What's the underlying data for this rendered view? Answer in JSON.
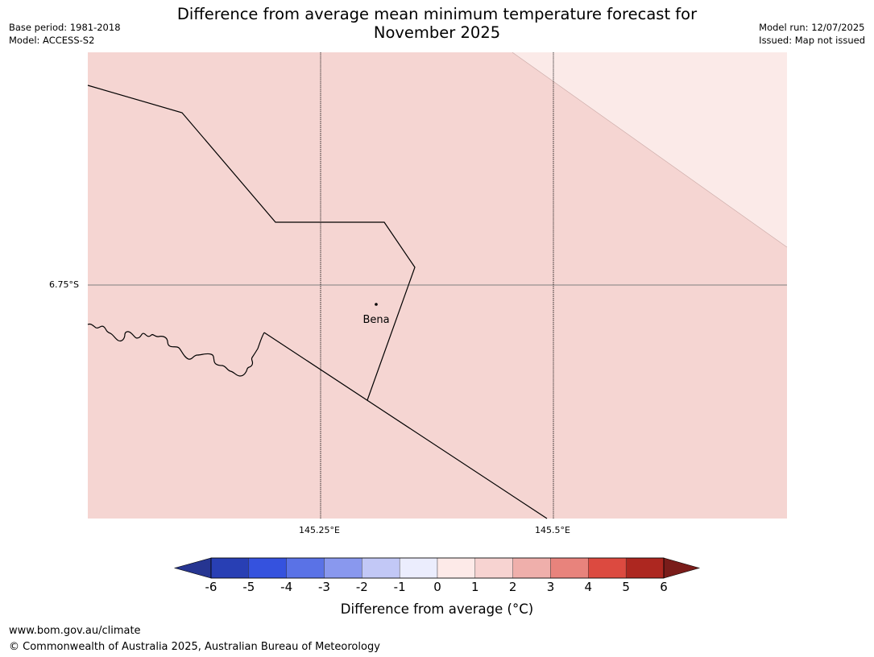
{
  "title": {
    "line1": "Difference from average mean minimum temperature forecast for",
    "line2": "November 2025"
  },
  "meta_left": {
    "base_period": "Base period: 1981-2018",
    "model": "Model: ACCESS-S2"
  },
  "meta_right": {
    "model_run": "Model run: 12/07/2025",
    "issued": "Issued: Map not issued"
  },
  "map": {
    "place": "Bena",
    "lat_labels": [
      "6.75°S"
    ],
    "lon_labels": [
      "145.25°E",
      "145.5°E"
    ],
    "fill_colors": {
      "main": "#f5d5d2",
      "corner": "#fbeae8",
      "border_line": "#000000",
      "grid_horizontal": "#808080",
      "grid_vertical": "#000000"
    }
  },
  "colorbar": {
    "ticks": [
      "-6",
      "-5",
      "-4",
      "-3",
      "-2",
      "-1",
      "0",
      "1",
      "2",
      "3",
      "4",
      "5",
      "6"
    ],
    "colors": [
      "#263591",
      "#283fb4",
      "#3552de",
      "#5a72e6",
      "#8998ee",
      "#c2c8f6",
      "#ebedfd",
      "#fdeae8",
      "#f7d3d1",
      "#efafab",
      "#e8837c",
      "#dc4a40",
      "#ad2720",
      "#7a1c1a"
    ],
    "label": "Difference from average (°C)"
  },
  "footer": {
    "url": "www.bom.gov.au/climate",
    "copyright": "© Commonwealth of Australia 2025, Australian Bureau of Meteorology"
  }
}
